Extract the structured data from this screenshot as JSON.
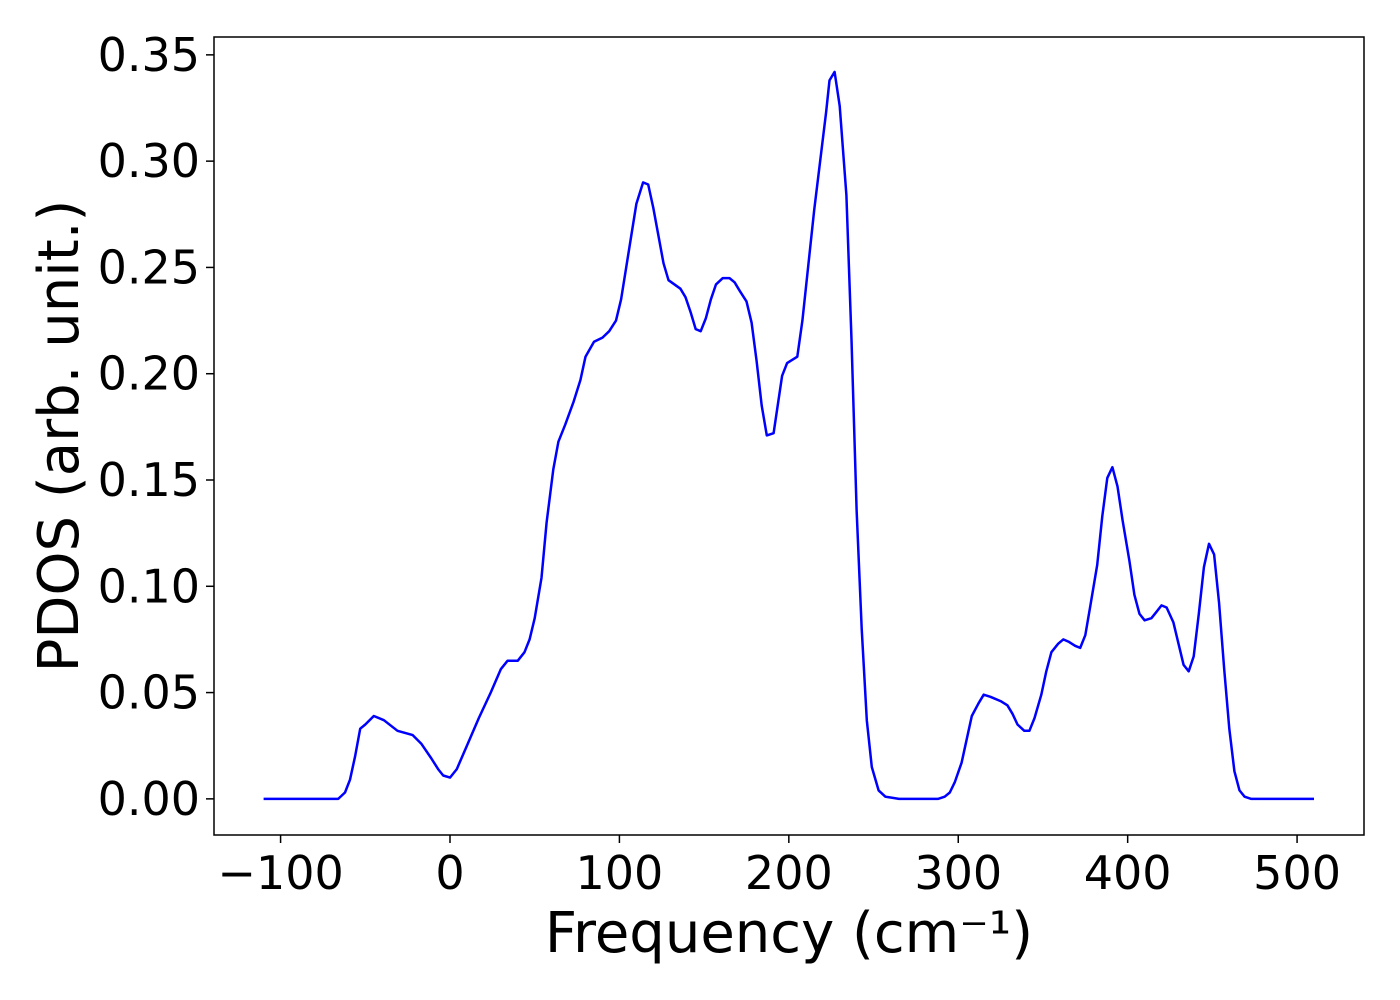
{
  "chart_data": {
    "type": "line",
    "xlabel": "Frequency (cm⁻¹)",
    "ylabel": "PDOS (arb. unit.)",
    "x": [
      -110,
      -90,
      -75,
      -66,
      -62,
      -59,
      -56,
      -53,
      -50,
      -45,
      -39,
      -31,
      -22,
      -17,
      -11,
      -7,
      -4,
      0,
      4,
      10,
      17,
      24,
      30,
      34,
      40,
      44,
      47,
      50,
      54,
      57,
      61,
      64,
      68,
      73,
      77,
      80,
      85,
      90,
      94,
      98,
      101,
      104,
      107,
      110,
      114,
      117,
      120,
      123,
      126,
      129,
      136,
      139,
      142,
      145,
      148,
      151,
      154,
      157,
      161,
      165,
      168,
      171,
      175,
      178,
      181,
      184,
      187,
      191,
      196,
      199,
      205,
      208,
      215,
      222,
      224,
      227,
      230,
      234,
      237,
      240,
      243,
      246,
      249,
      253,
      257,
      265,
      280,
      288,
      292,
      295,
      298,
      302,
      305,
      308,
      312,
      315,
      319,
      325,
      329,
      332,
      335,
      339,
      342,
      345,
      349,
      352,
      355,
      359,
      362,
      365,
      369,
      372,
      375,
      378,
      382,
      385,
      388,
      391,
      394,
      397,
      401,
      404,
      407,
      410,
      414,
      417,
      420,
      423,
      427,
      430,
      433,
      436,
      439,
      442,
      445,
      448,
      451,
      454,
      457,
      460,
      463,
      466,
      469,
      473,
      490,
      510
    ],
    "series": [
      {
        "color": "#0000ff",
        "values": [
          0,
          0,
          0,
          0,
          0.003,
          0.009,
          0.02,
          0.033,
          0.035,
          0.039,
          0.037,
          0.032,
          0.03,
          0.026,
          0.019,
          0.014,
          0.011,
          0.01,
          0.014,
          0.025,
          0.038,
          0.05,
          0.061,
          0.065,
          0.065,
          0.069,
          0.075,
          0.085,
          0.104,
          0.13,
          0.155,
          0.168,
          0.176,
          0.187,
          0.197,
          0.208,
          0.215,
          0.217,
          0.22,
          0.225,
          0.235,
          0.25,
          0.265,
          0.28,
          0.29,
          0.289,
          0.278,
          0.265,
          0.252,
          0.244,
          0.24,
          0.236,
          0.229,
          0.221,
          0.22,
          0.226,
          0.235,
          0.242,
          0.245,
          0.245,
          0.243,
          0.239,
          0.234,
          0.224,
          0.206,
          0.185,
          0.171,
          0.172,
          0.199,
          0.205,
          0.208,
          0.225,
          0.277,
          0.323,
          0.338,
          0.342,
          0.326,
          0.284,
          0.216,
          0.136,
          0.08,
          0.037,
          0.015,
          0.004,
          0.001,
          0,
          0,
          0,
          0.001,
          0.003,
          0.008,
          0.017,
          0.028,
          0.039,
          0.045,
          0.049,
          0.048,
          0.046,
          0.044,
          0.04,
          0.035,
          0.032,
          0.032,
          0.038,
          0.049,
          0.06,
          0.069,
          0.073,
          0.075,
          0.074,
          0.072,
          0.071,
          0.077,
          0.091,
          0.11,
          0.133,
          0.151,
          0.156,
          0.147,
          0.131,
          0.112,
          0.096,
          0.087,
          0.084,
          0.085,
          0.088,
          0.091,
          0.09,
          0.083,
          0.073,
          0.063,
          0.06,
          0.067,
          0.087,
          0.109,
          0.12,
          0.115,
          0.092,
          0.061,
          0.033,
          0.013,
          0.004,
          0.001,
          0,
          0,
          0
        ]
      }
    ],
    "xlim": [
      -139.3,
      539.5
    ],
    "ylim": [
      -0.017,
      0.3584
    ],
    "xticks": [
      {
        "value": -100,
        "label": "−100"
      },
      0,
      100,
      200,
      300,
      400,
      500
    ],
    "yticks": [
      {
        "value": 0,
        "label": "0.00"
      },
      {
        "value": 0.05,
        "label": "0.05"
      },
      {
        "value": 0.1,
        "label": "0.10"
      },
      {
        "value": 0.15,
        "label": "0.15"
      },
      {
        "value": 0.2,
        "label": "0.20"
      },
      {
        "value": 0.25,
        "label": "0.25"
      },
      {
        "value": 0.3,
        "label": "0.30"
      },
      {
        "value": 0.35,
        "label": "0.35"
      }
    ],
    "grid": false
  }
}
